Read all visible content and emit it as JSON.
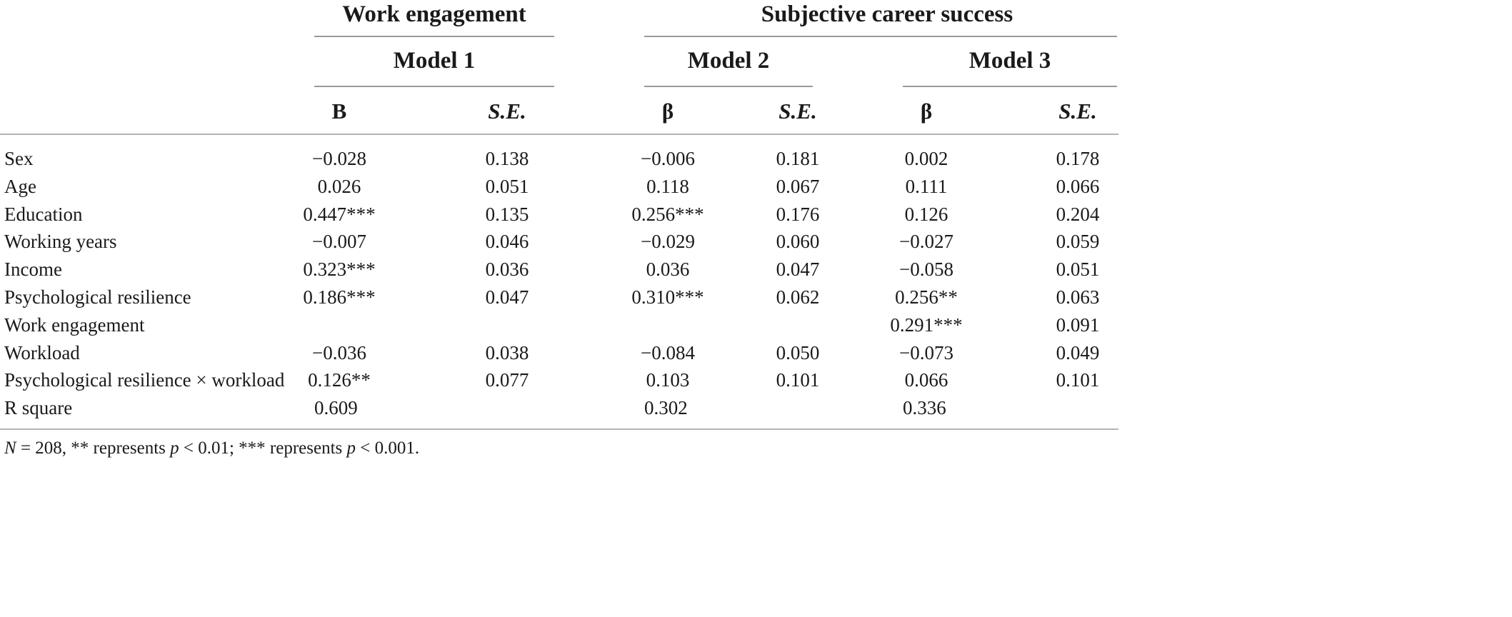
{
  "groups": [
    {
      "title": "Work engagement"
    },
    {
      "title": "Subjective career success"
    }
  ],
  "models": [
    "Model 1",
    "Model 2",
    "Model 3"
  ],
  "column_headers": [
    "B",
    "S.E.",
    "β",
    "S.E.",
    "β",
    "S.E."
  ],
  "rows": [
    {
      "label": "Sex",
      "values": [
        "−0.028",
        "0.138",
        "−0.006",
        "0.181",
        "0.002",
        "0.178"
      ]
    },
    {
      "label": "Age",
      "values": [
        "0.026",
        "0.051",
        "0.118",
        "0.067",
        "0.111",
        "0.066"
      ]
    },
    {
      "label": "Education",
      "values": [
        "0.447***",
        "0.135",
        "0.256***",
        "0.176",
        "0.126",
        "0.204"
      ]
    },
    {
      "label": "Working years",
      "values": [
        "−0.007",
        "0.046",
        "−0.029",
        "0.060",
        "−0.027",
        "0.059"
      ]
    },
    {
      "label": "Income",
      "values": [
        "0.323***",
        "0.036",
        "0.036",
        "0.047",
        "−0.058",
        "0.051"
      ]
    },
    {
      "label": "Psychological resilience",
      "values": [
        "0.186***",
        "0.047",
        "0.310***",
        "0.062",
        "0.256**",
        "0.063"
      ]
    },
    {
      "label": "Work engagement",
      "values": [
        "",
        "",
        "",
        "",
        "0.291***",
        "0.091"
      ]
    },
    {
      "label": "Workload",
      "values": [
        "−0.036",
        "0.038",
        "−0.084",
        "0.050",
        "−0.073",
        "0.049"
      ]
    },
    {
      "label": "Psychological resilience × workload",
      "values": [
        "0.126**",
        "0.077",
        "0.103",
        "0.101",
        "0.066",
        "0.101"
      ]
    },
    {
      "label": "R square",
      "values": [
        "0.609",
        "",
        "0.302",
        "",
        "0.336",
        ""
      ]
    }
  ],
  "footnote": {
    "n_label": "N",
    "n_text": " = 208, ** represents ",
    "p1_label": "p",
    "p1_text": " < 0.01; *** represents ",
    "p2_label": "p",
    "p2_text": " < 0.001."
  }
}
